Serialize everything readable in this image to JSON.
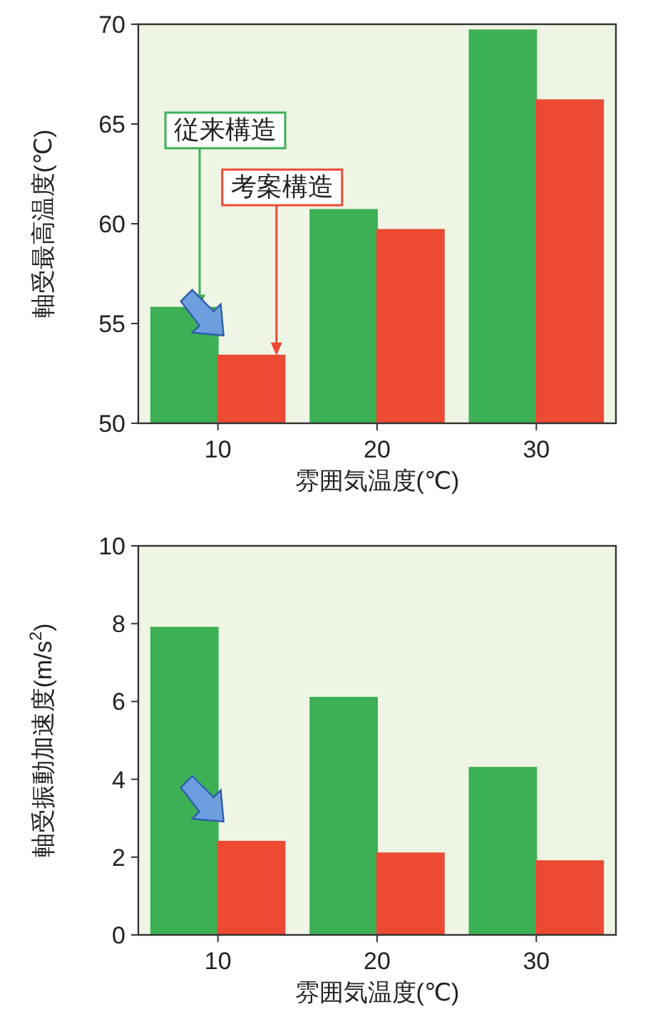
{
  "chart_data": [
    {
      "type": "bar",
      "ylabel": "軸受最高温度(℃)",
      "xlabel": "雰囲気温度(℃)",
      "categories": [
        "10",
        "20",
        "30"
      ],
      "ylim": [
        50,
        70
      ],
      "yticks": [
        50,
        55,
        60,
        65,
        70
      ],
      "series": [
        {
          "name": "従来構造",
          "color": "#3cb054",
          "values": [
            55.8,
            60.7,
            69.7
          ]
        },
        {
          "name": "考案構造",
          "color": "#ec4a32",
          "values": [
            53.4,
            59.7,
            66.2
          ]
        }
      ]
    },
    {
      "type": "bar",
      "ylabel": "軸受振動加速度(m/s$^{2}$)",
      "xlabel": "雰囲気温度(℃)",
      "categories": [
        "10",
        "20",
        "30"
      ],
      "ylim": [
        0,
        10
      ],
      "yticks": [
        0,
        2,
        4,
        6,
        8,
        10
      ],
      "series": [
        {
          "color": "#3cb054",
          "values": [
            7.9,
            6.1,
            4.3
          ]
        },
        {
          "color": "#ec4a32",
          "values": [
            2.4,
            2.1,
            1.9
          ]
        }
      ]
    }
  ]
}
